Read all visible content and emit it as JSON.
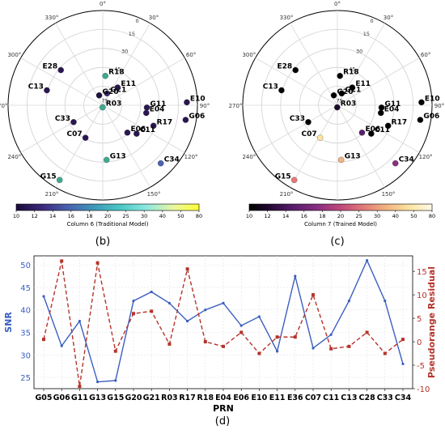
{
  "panels": {
    "b_label": "(b)",
    "c_label": "(c)",
    "d_label": "(d)"
  },
  "polar_common": {
    "angle_ticks": [
      "0°",
      "30°",
      "60°",
      "90°",
      "120°",
      "150°",
      "180°",
      "210°",
      "240°",
      "270°",
      "300°",
      "330°"
    ],
    "radial_ticks": [
      "0",
      "15",
      "30",
      "45",
      "75"
    ]
  },
  "chart_data": [
    {
      "type": "scatter",
      "panel": "b",
      "projection": "polar",
      "colorbar_label": "Column 6 (Traditional Model)",
      "colorbar_ticks": [
        10,
        12,
        14,
        16,
        18,
        20,
        25,
        30,
        40,
        50,
        80
      ],
      "colormap": [
        "#1a0a3a",
        "#3b2a7a",
        "#4a62b0",
        "#3f9ab8",
        "#49c9c6",
        "#8de8e0",
        "#e8f6a0",
        "#ffff33"
      ],
      "satellites": [
        {
          "prn": "R18",
          "az": 5,
          "el": 62,
          "color": "#3fa98f"
        },
        {
          "prn": "E28",
          "az": 310,
          "el": 38,
          "color": "#2a1650"
        },
        {
          "prn": "G21",
          "az": 20,
          "el": 78,
          "color": "#3a2a6a"
        },
        {
          "prn": "E11",
          "az": 40,
          "el": 68,
          "color": "#2a1650"
        },
        {
          "prn": "G20",
          "az": 340,
          "el": 80,
          "color": "#1e0f3e"
        },
        {
          "prn": "E10",
          "az": 88,
          "el": 10,
          "color": "#2a1650"
        },
        {
          "prn": "C13",
          "az": 285,
          "el": 35,
          "color": "#2a1650"
        },
        {
          "prn": "G11",
          "az": 93,
          "el": 48,
          "color": "#2a1650"
        },
        {
          "prn": "E04",
          "az": 100,
          "el": 48,
          "color": "#2a1650"
        },
        {
          "prn": "R03",
          "az": 185,
          "el": 88,
          "color": "#3fa98f"
        },
        {
          "prn": "R17",
          "az": 112,
          "el": 38,
          "color": "#2a1650"
        },
        {
          "prn": "G06",
          "az": 100,
          "el": 10,
          "color": "#2a1650"
        },
        {
          "prn": "C33",
          "az": 240,
          "el": 58,
          "color": "#2a1650"
        },
        {
          "prn": "E06",
          "az": 138,
          "el": 55,
          "color": "#2a1650"
        },
        {
          "prn": "C11",
          "az": 130,
          "el": 48,
          "color": "#2a1650"
        },
        {
          "prn": "C07",
          "az": 208,
          "el": 55,
          "color": "#2a1650"
        },
        {
          "prn": "G13",
          "az": 176,
          "el": 38,
          "color": "#3fa98f"
        },
        {
          "prn": "C34",
          "az": 135,
          "el": 12,
          "color": "#4a62b0"
        },
        {
          "prn": "G15",
          "az": 210,
          "el": 8,
          "color": "#3fa98f"
        }
      ]
    },
    {
      "type": "scatter",
      "panel": "c",
      "projection": "polar",
      "colorbar_label": "Column 7 (Trained Model)",
      "colorbar_ticks": [
        10,
        12,
        14,
        16,
        18,
        20,
        25,
        30,
        40,
        50,
        80
      ],
      "colormap": [
        "#000000",
        "#2a0a3a",
        "#5b1f6e",
        "#8a2f80",
        "#c0477a",
        "#e27a78",
        "#f2b380",
        "#fbe3a0",
        "#fffbe8"
      ],
      "satellites": [
        {
          "prn": "R18",
          "az": 5,
          "el": 62,
          "color": "#000000"
        },
        {
          "prn": "E28",
          "az": 310,
          "el": 38,
          "color": "#000000"
        },
        {
          "prn": "G21",
          "az": 20,
          "el": 78,
          "color": "#000000"
        },
        {
          "prn": "E11",
          "az": 40,
          "el": 68,
          "color": "#000000"
        },
        {
          "prn": "G20",
          "az": 340,
          "el": 80,
          "color": "#000000"
        },
        {
          "prn": "E10",
          "az": 88,
          "el": 10,
          "color": "#000000"
        },
        {
          "prn": "C13",
          "az": 285,
          "el": 35,
          "color": "#000000"
        },
        {
          "prn": "G11",
          "az": 93,
          "el": 48,
          "color": "#000000"
        },
        {
          "prn": "E04",
          "az": 100,
          "el": 48,
          "color": "#000000"
        },
        {
          "prn": "R03",
          "az": 185,
          "el": 88,
          "color": "#1a0a2a"
        },
        {
          "prn": "R17",
          "az": 112,
          "el": 38,
          "color": "#000000"
        },
        {
          "prn": "G06",
          "az": 100,
          "el": 10,
          "color": "#000000"
        },
        {
          "prn": "C33",
          "az": 240,
          "el": 58,
          "color": "#000000"
        },
        {
          "prn": "E06",
          "az": 138,
          "el": 55,
          "color": "#5b1f6e"
        },
        {
          "prn": "C11",
          "az": 130,
          "el": 48,
          "color": "#000000"
        },
        {
          "prn": "C07",
          "az": 208,
          "el": 55,
          "color": "#fbe3a0"
        },
        {
          "prn": "G13",
          "az": 176,
          "el": 38,
          "color": "#f2b380"
        },
        {
          "prn": "C34",
          "az": 135,
          "el": 12,
          "color": "#8a2f80"
        },
        {
          "prn": "G15",
          "az": 210,
          "el": 8,
          "color": "#e27a78"
        }
      ]
    },
    {
      "type": "line",
      "panel": "d",
      "xlabel": "PRN",
      "ylabel": "SNR",
      "ylabel_right": "Pseudorange Residual",
      "categories": [
        "G05",
        "G06",
        "G11",
        "G13",
        "G15",
        "G20",
        "G21",
        "R03",
        "R17",
        "R18",
        "E04",
        "E06",
        "E10",
        "E11",
        "E36",
        "C07",
        "C11",
        "C13",
        "C28",
        "C33",
        "C34"
      ],
      "ylim": [
        22.5,
        52
      ],
      "yticks": [
        25,
        30,
        35,
        40,
        45,
        50
      ],
      "ylim_right": [
        -10,
        18.3
      ],
      "yticks_right": [
        -10,
        -5,
        0,
        5,
        10,
        15
      ],
      "grid": true,
      "series": [
        {
          "axis": "left",
          "color": "#3b5fc0",
          "style": "solid",
          "marker": "circle",
          "values": [
            43,
            32,
            37.5,
            24,
            24.3,
            42,
            44,
            41.5,
            37.5,
            40,
            41.5,
            36.5,
            38.5,
            30.8,
            47.5,
            31.5,
            34.5,
            42,
            51,
            42,
            28
          ]
        },
        {
          "axis": "right",
          "color": "#b5332a",
          "style": "dashed",
          "marker": "square",
          "values": [
            0.5,
            17.2,
            -9.5,
            16.8,
            -2,
            6,
            6.5,
            -0.5,
            15.5,
            0,
            -1,
            2,
            -2.5,
            1,
            1,
            10,
            -1.5,
            -1,
            2,
            -2.5,
            0.5
          ]
        }
      ]
    }
  ]
}
